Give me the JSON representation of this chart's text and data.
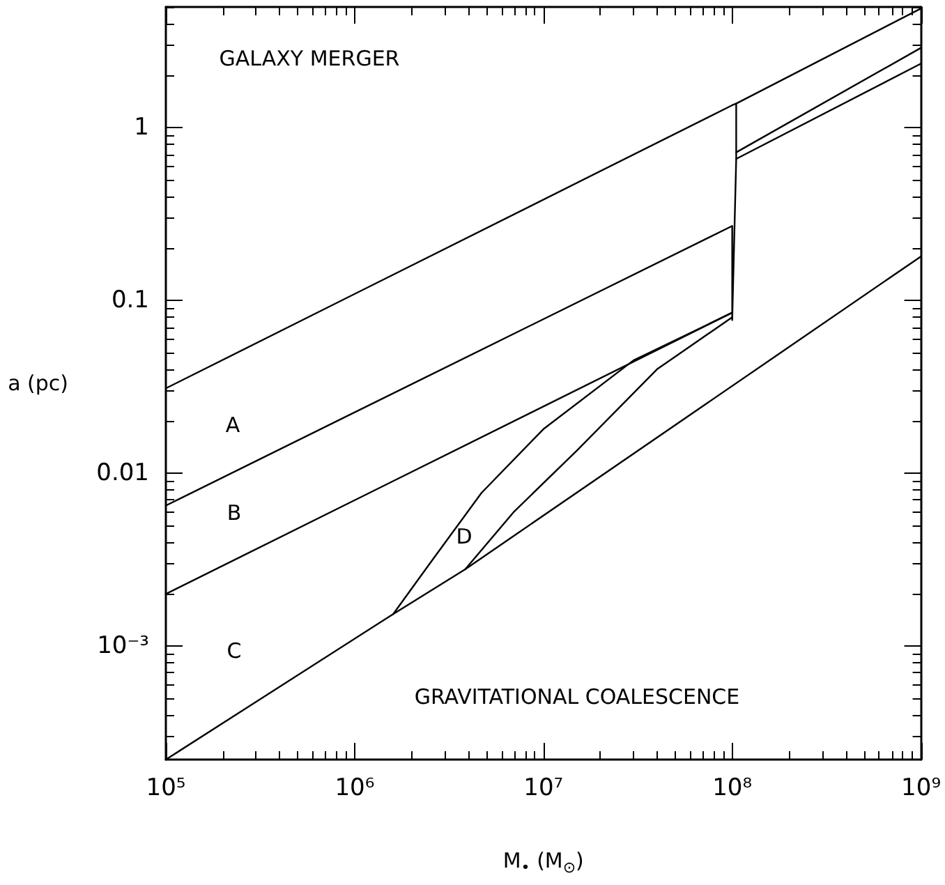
{
  "chart_data": {
    "type": "line",
    "xlabel": "M$_{•}$ (M$_{⊙}$)",
    "ylabel": "a (pc)",
    "log": "xy",
    "grid": false,
    "marker": "none",
    "line_style": "solid",
    "xlim": [
      100000,
      1000000000
    ],
    "ylim": [
      0.00022,
      5
    ],
    "xticks": [
      {
        "value": 100000,
        "label": "10⁵"
      },
      {
        "value": 1000000,
        "label": "10⁶"
      },
      {
        "value": 10000000,
        "label": "10⁷"
      },
      {
        "value": 100000000,
        "label": "10⁸"
      },
      {
        "value": 1000000000,
        "label": "10⁹"
      }
    ],
    "yticks": [
      {
        "value": 0.001,
        "label": "10⁻³"
      },
      0.01,
      0.1,
      1
    ],
    "series": [
      {
        "color": "#000000",
        "x": [
          100000,
          100000000,
          105000000,
          1000000000
        ],
        "values": [
          0.031,
          1.35,
          1.38,
          4.9
        ]
      },
      {
        "color": "#000000",
        "x": [
          100000,
          100000000,
          100000000,
          105000000,
          105000000
        ],
        "values": [
          0.0065,
          0.27,
          0.077,
          0.66,
          1.38
        ]
      },
      {
        "color": "#000000",
        "x": [
          100000,
          100000000
        ],
        "values": [
          0.002,
          0.085
        ]
      },
      {
        "color": "#000000",
        "x": [
          100000,
          1600000,
          3850000,
          1000000000
        ],
        "values": [
          0.00022,
          0.00153,
          0.00278,
          0.18
        ]
      },
      {
        "color": "#000000",
        "x": [
          1600000,
          2500000,
          4700000,
          10000000,
          30000000,
          100000000
        ],
        "values": [
          0.00153,
          0.003,
          0.0077,
          0.018,
          0.045,
          0.085
        ]
      },
      {
        "color": "#000000",
        "x": [
          3850000,
          7000000,
          15000000,
          40000000,
          100000000
        ],
        "values": [
          0.00278,
          0.006,
          0.0135,
          0.04,
          0.08
        ]
      },
      {
        "color": "#000000",
        "x": [
          105000000,
          1000000000
        ],
        "values": [
          0.66,
          2.35
        ]
      },
      {
        "color": "#000000",
        "x": [
          105000000,
          1000000000
        ],
        "values": [
          0.72,
          2.9
        ]
      }
    ],
    "annotations": [
      "GALAXY MERGER",
      "A",
      "B",
      "C",
      "D",
      "GRAVITATIONAL COALESCENCE"
    ]
  }
}
